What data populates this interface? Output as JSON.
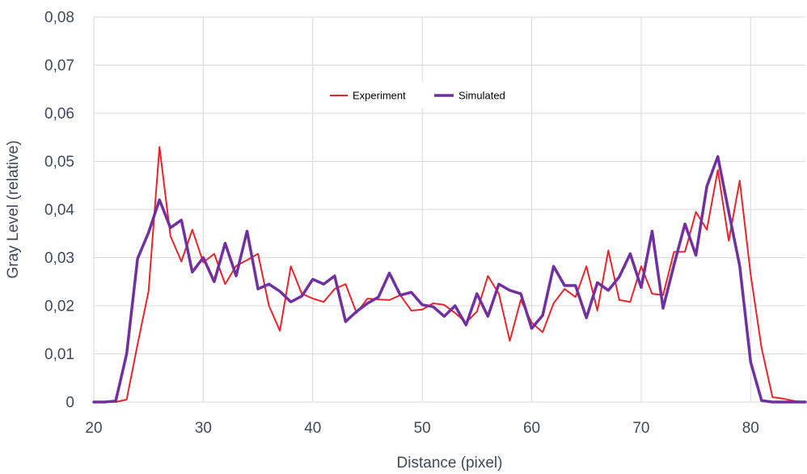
{
  "chart_data": {
    "type": "line",
    "xlabel": "Distance (pixel)",
    "ylabel": "Gray Level (relative)",
    "xlim": [
      20,
      85
    ],
    "ylim": [
      0,
      0.08
    ],
    "x_ticks": [
      20,
      30,
      40,
      50,
      60,
      70,
      80
    ],
    "x_tick_labels": [
      "20",
      "30",
      "40",
      "50",
      "60",
      "70",
      "80"
    ],
    "y_ticks": [
      0,
      0.01,
      0.02,
      0.03,
      0.04,
      0.05,
      0.06,
      0.07,
      0.08
    ],
    "y_tick_labels": [
      "0",
      "0,01",
      "0,02",
      "0,03",
      "0,04",
      "0,05",
      "0,06",
      "0,07",
      "0,08"
    ],
    "grid": true,
    "legend": {
      "position": "top-center"
    },
    "x": [
      20,
      21,
      22,
      23,
      24,
      25,
      26,
      27,
      28,
      29,
      30,
      31,
      32,
      33,
      34,
      35,
      36,
      37,
      38,
      39,
      40,
      41,
      42,
      43,
      44,
      45,
      46,
      47,
      48,
      49,
      50,
      51,
      52,
      53,
      54,
      55,
      56,
      57,
      58,
      59,
      60,
      61,
      62,
      63,
      64,
      65,
      66,
      67,
      68,
      69,
      70,
      71,
      72,
      73,
      74,
      75,
      76,
      77,
      78,
      79,
      80,
      81,
      82,
      83,
      84,
      85
    ],
    "series": [
      {
        "name": "Experiment",
        "color": "#e8252b",
        "stroke_width": 2,
        "values": [
          0,
          0,
          0,
          0.0005,
          0.012,
          0.023,
          0.053,
          0.0345,
          0.0292,
          0.0358,
          0.029,
          0.0308,
          0.0245,
          0.0283,
          0.0295,
          0.0308,
          0.02,
          0.0148,
          0.0282,
          0.0225,
          0.0215,
          0.0208,
          0.0235,
          0.0245,
          0.0185,
          0.0215,
          0.0213,
          0.0212,
          0.0222,
          0.019,
          0.0192,
          0.0205,
          0.0202,
          0.0185,
          0.0165,
          0.0188,
          0.0262,
          0.0225,
          0.0127,
          0.0212,
          0.0165,
          0.0145,
          0.0205,
          0.0235,
          0.0218,
          0.0282,
          0.019,
          0.0315,
          0.0212,
          0.0208,
          0.0282,
          0.0225,
          0.0222,
          0.0312,
          0.0312,
          0.0395,
          0.0358,
          0.0482,
          0.0335,
          0.046,
          0.0265,
          0.0112,
          0.001,
          0.0007,
          0.0002,
          0
        ]
      },
      {
        "name": "Simulated",
        "color": "#7030a0",
        "stroke_width": 3.5,
        "values": [
          0,
          0,
          0.0002,
          0.01,
          0.0298,
          0.0352,
          0.042,
          0.0362,
          0.0378,
          0.027,
          0.03,
          0.025,
          0.033,
          0.0262,
          0.0355,
          0.0235,
          0.0245,
          0.023,
          0.0208,
          0.022,
          0.0255,
          0.0245,
          0.0262,
          0.0167,
          0.0188,
          0.0205,
          0.0218,
          0.0268,
          0.0222,
          0.0228,
          0.0202,
          0.0198,
          0.0178,
          0.02,
          0.016,
          0.0225,
          0.0178,
          0.0245,
          0.0232,
          0.0225,
          0.0153,
          0.018,
          0.0282,
          0.0242,
          0.0242,
          0.0175,
          0.0248,
          0.0232,
          0.026,
          0.0308,
          0.0238,
          0.0355,
          0.0195,
          0.0285,
          0.037,
          0.0305,
          0.0448,
          0.051,
          0.0395,
          0.0283,
          0.0083,
          0.0003,
          0,
          0,
          0,
          0
        ]
      }
    ]
  }
}
